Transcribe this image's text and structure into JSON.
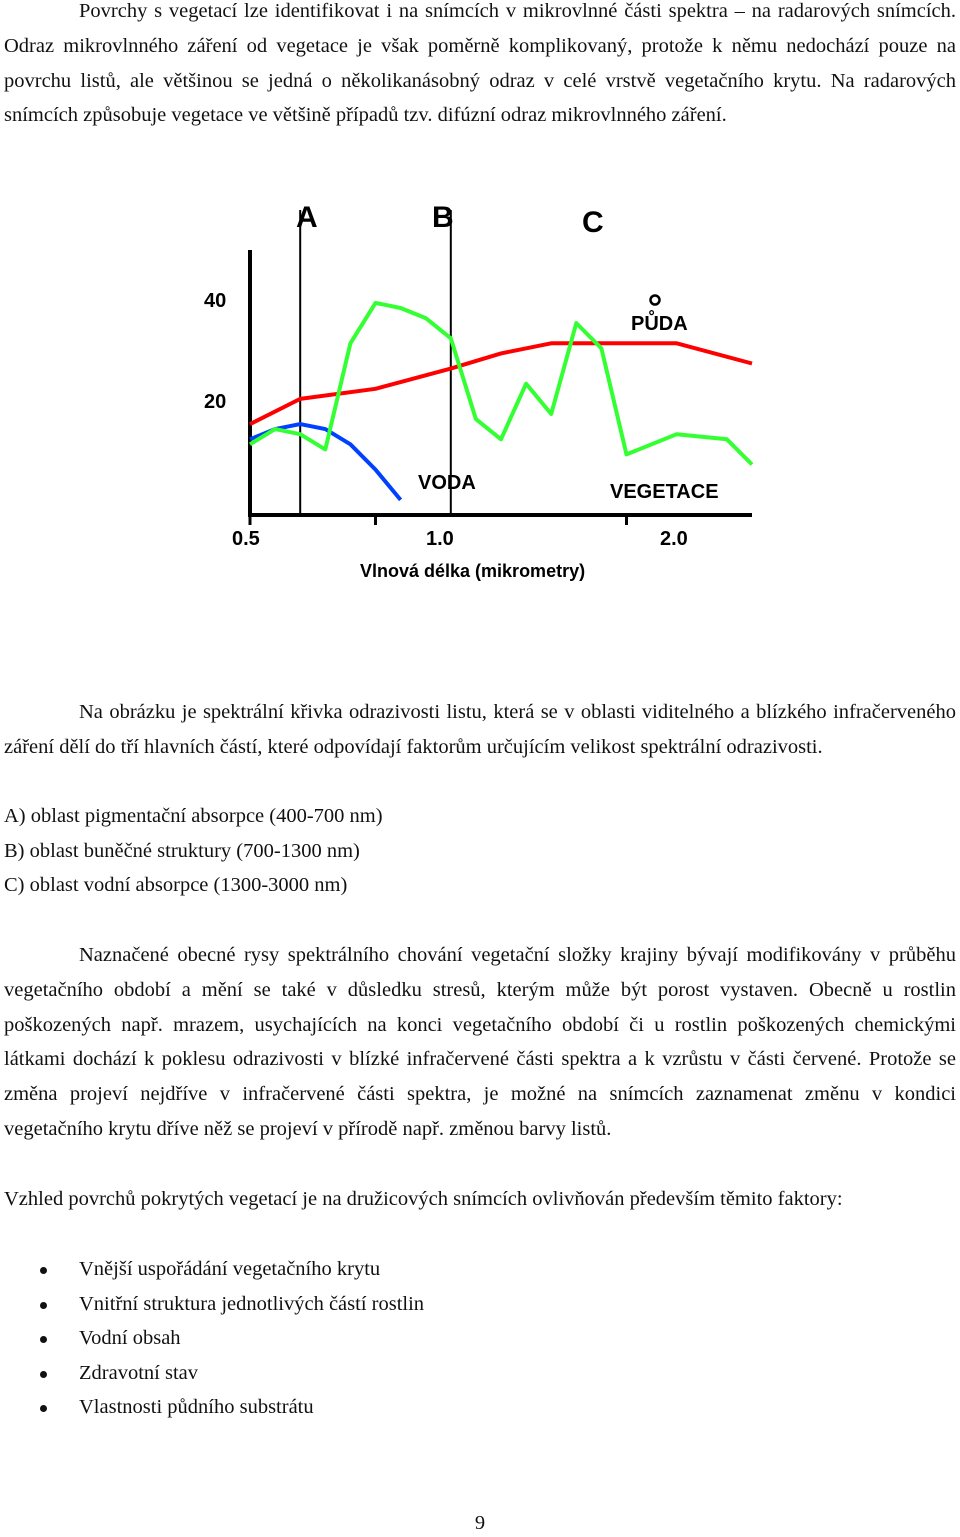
{
  "paragraph1": "Povrchy s vegetací lze identifikovat i na snímcích v mikrovlnné části spektra – na radarových snímcích. Odraz mikrovlnného záření od vegetace je však poměrně komplikovaný, protože k němu nedochází pouze na povrchu listů, ale většinou se jedná o několikanásobný odraz v celé vrstvě vegetačního krytu. Na radarových snímcích způsobuje vegetace ve většině případů tzv. difúzní odraz mikrovlnného záření.",
  "figure": {
    "region_labels": [
      "A",
      "B",
      "C"
    ],
    "y_ticks": [
      "40",
      "20"
    ],
    "x_ticks": [
      "0.5",
      "1.0",
      "2.0"
    ],
    "x_title": "Vlnová délka (mikrometry)",
    "curve_labels": {
      "soil": "PŮDA",
      "water": "VODA",
      "vegetation": "VEGETACE"
    },
    "colors": {
      "soil": "#ff0000",
      "water": "#0040ff",
      "vegetation": "#33ff33",
      "axis": "#000000"
    },
    "chart_data": {
      "type": "line",
      "xlim": [
        0.5,
        2.5
      ],
      "ylim": [
        0,
        50
      ],
      "x_ticks": [
        0.5,
        1.0,
        2.0
      ],
      "y_ticks": [
        20,
        40
      ],
      "region_boundaries": [
        0.7,
        1.3
      ],
      "series": [
        {
          "name": "PŮDA",
          "x": [
            0.5,
            0.7,
            1.0,
            1.3,
            1.5,
            1.7,
            2.0,
            2.2,
            2.5
          ],
          "y": [
            18,
            23,
            25,
            29,
            32,
            34,
            34,
            34,
            30
          ]
        },
        {
          "name": "VODA",
          "x": [
            0.5,
            0.6,
            0.7,
            0.8,
            0.9,
            1.0,
            1.1
          ],
          "y": [
            15,
            17,
            18,
            17,
            14,
            9,
            3
          ]
        },
        {
          "name": "VEGETACE",
          "x": [
            0.5,
            0.6,
            0.7,
            0.8,
            0.9,
            1.0,
            1.1,
            1.2,
            1.3,
            1.4,
            1.5,
            1.6,
            1.7,
            1.8,
            1.9,
            2.0,
            2.2,
            2.4,
            2.5
          ],
          "y": [
            14,
            17,
            16,
            13,
            34,
            42,
            41,
            39,
            35,
            19,
            15,
            26,
            20,
            38,
            33,
            12,
            16,
            15,
            10
          ]
        }
      ]
    }
  },
  "paragraph2": "Na obrázku je spektrální křivka odrazivosti listu, která se v oblasti viditelného a blízkého infračerveného záření dělí do tří hlavních částí, které odpovídají faktorům určujícím velikost spektrální odrazivosti.",
  "region_lines": [
    "A) oblast pigmentační absorpce (400-700 nm)",
    "B) oblast buněčné struktury (700-1300 nm)",
    "C) oblast vodní absorpce (1300-3000 nm)"
  ],
  "paragraph3": "Naznačené obecné rysy spektrálního chování vegetační složky krajiny bývají modifikovány v průběhu vegetačního období a mění se také v důsledku stresů, kterým může být porost vystaven. Obecně u rostlin poškozených např. mrazem, usychajících na konci vegetačního období či u rostlin poškozených chemickými látkami dochází k poklesu odrazivosti v blízké infračervené části spektra a k vzrůstu v části červené. Protože se změna projeví nejdříve v infračervené části spektra, je možné na snímcích zaznamenat změnu v kondici vegetačního krytu dříve něž se projeví v přírodě např. změnou barvy listů.",
  "paragraph4": "Vzhled povrchů pokrytých vegetací je na družicových snímcích ovlivňován především těmito faktory:",
  "factors": [
    "Vnější uspořádání vegetačního krytu",
    "Vnitřní struktura jednotlivých částí rostlin",
    "Vodní obsah",
    "Zdravotní stav",
    "Vlastnosti půdního substrátu"
  ],
  "page_number": "9"
}
